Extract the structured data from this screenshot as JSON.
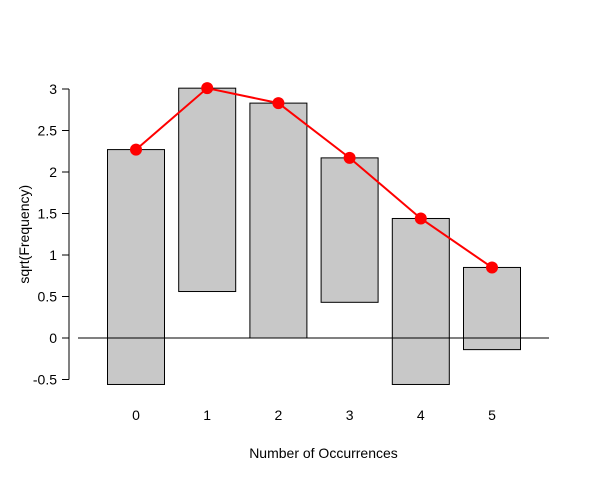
{
  "chart_data": {
    "type": "bar",
    "title": "",
    "xlabel": "Number of Occurrences",
    "ylabel": "sqrt(Frequency)",
    "categories": [
      "0",
      "1",
      "2",
      "3",
      "4",
      "5"
    ],
    "x": [
      0,
      1,
      2,
      3,
      4,
      5
    ],
    "bars": [
      {
        "x": 0,
        "bottom": -0.56,
        "top": 2.27
      },
      {
        "x": 1,
        "bottom": 0.56,
        "top": 3.01
      },
      {
        "x": 2,
        "bottom": 0.0,
        "top": 2.83
      },
      {
        "x": 3,
        "bottom": 0.43,
        "top": 2.17
      },
      {
        "x": 4,
        "bottom": -0.56,
        "top": 1.44
      },
      {
        "x": 5,
        "bottom": -0.14,
        "top": 0.85
      }
    ],
    "line": {
      "color": "#ff0000",
      "values": [
        2.27,
        3.01,
        2.83,
        2.17,
        1.44,
        0.85
      ]
    },
    "yticks": [
      "-0.5",
      "0",
      "0.5",
      "1",
      "1.5",
      "2",
      "2.5",
      "3"
    ],
    "ylim": [
      -0.5,
      3
    ],
    "bar_color": "#c8c8c8",
    "reference_line": 0,
    "grid": false
  }
}
